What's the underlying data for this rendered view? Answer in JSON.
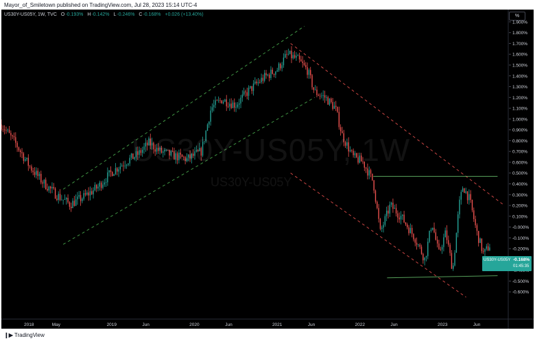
{
  "header": {
    "publisher_line": "Mayor_of_Smiletown published on TradingView.com, Jul 28, 2023 15:14 UTC-4"
  },
  "legend": {
    "symbol": "US30Y-US05Y, 1W, TVC",
    "o_label": "O",
    "o_value": "-0.193%",
    "h_label": "H",
    "h_value": "-0.142%",
    "l_label": "L",
    "l_value": "-0.246%",
    "c_label": "C",
    "c_value": "-0.168%",
    "change": "+0.026 (+13.40%)"
  },
  "watermark": {
    "main": "US30Y-US05Y, 1W",
    "sub": "US30Y-US05Y"
  },
  "price_axis": {
    "unit_button": "%"
  },
  "price_tag": {
    "symbol": "US30Y-US05Y",
    "price": "-0.168%",
    "timer": "01:45:35"
  },
  "footer": {
    "brand": "TradingView"
  },
  "colors": {
    "background": "#000000",
    "up_candle": "#26a69a",
    "down_candle": "#ef5350",
    "green_trendline": "#4caf50",
    "red_trendline": "#ef5350",
    "horizontal_line": "#66bb6a",
    "axis_text": "#d1d4dc"
  },
  "chart_data": {
    "type": "candlestick",
    "title": "",
    "xlabel": "",
    "ylabel": "",
    "ylim": [
      -0.7,
      1.95
    ],
    "y_unit": "%",
    "y_ticks": [
      "1.900%",
      "1.800%",
      "1.700%",
      "1.600%",
      "1.500%",
      "1.400%",
      "1.300%",
      "1.200%",
      "1.100%",
      "1.000%",
      "0.900%",
      "0.800%",
      "0.700%",
      "0.600%",
      "0.500%",
      "0.400%",
      "0.300%",
      "0.200%",
      "0.100%",
      "-0.000%",
      "-0.100%",
      "-0.200%",
      "-0.300%",
      "-0.400%",
      "-0.500%",
      "-0.600%"
    ],
    "y_tick_values": [
      1.9,
      1.8,
      1.7,
      1.6,
      1.5,
      1.4,
      1.3,
      1.2,
      1.1,
      1.0,
      0.9,
      0.8,
      0.7,
      0.6,
      0.5,
      0.4,
      0.3,
      0.2,
      0.1,
      0.0,
      -0.1,
      -0.2,
      -0.3,
      -0.4,
      -0.5,
      -0.6
    ],
    "xlim": [
      "2017-09-01",
      "2023-10-15"
    ],
    "x_ticks": [
      {
        "label": "2018",
        "date": "2018-01-01"
      },
      {
        "label": "May",
        "date": "2018-05-01"
      },
      {
        "label": "2019",
        "date": "2019-01-01"
      },
      {
        "label": "Jun",
        "date": "2019-06-01"
      },
      {
        "label": "2020",
        "date": "2020-01-01"
      },
      {
        "label": "Jun",
        "date": "2020-06-01"
      },
      {
        "label": "2021",
        "date": "2021-01-01"
      },
      {
        "label": "Jun",
        "date": "2021-06-01"
      },
      {
        "label": "2022",
        "date": "2022-01-01"
      },
      {
        "label": "Jun",
        "date": "2022-06-01"
      },
      {
        "label": "2023",
        "date": "2023-01-01"
      },
      {
        "label": "Jun",
        "date": "2023-06-01"
      }
    ],
    "anchors": [
      [
        "2017-09-01",
        0.95
      ],
      [
        "2017-11-01",
        0.78
      ],
      [
        "2018-01-01",
        0.57
      ],
      [
        "2018-03-01",
        0.42
      ],
      [
        "2018-05-01",
        0.3
      ],
      [
        "2018-07-01",
        0.21
      ],
      [
        "2018-09-01",
        0.28
      ],
      [
        "2018-11-01",
        0.37
      ],
      [
        "2019-01-01",
        0.51
      ],
      [
        "2019-03-01",
        0.6
      ],
      [
        "2019-05-01",
        0.68
      ],
      [
        "2019-06-15",
        0.78
      ],
      [
        "2019-08-01",
        0.7
      ],
      [
        "2019-10-01",
        0.66
      ],
      [
        "2019-12-01",
        0.63
      ],
      [
        "2020-02-01",
        0.7
      ],
      [
        "2020-03-15",
        1.1
      ],
      [
        "2020-05-01",
        1.18
      ],
      [
        "2020-07-01",
        1.13
      ],
      [
        "2020-09-01",
        1.27
      ],
      [
        "2020-11-01",
        1.38
      ],
      [
        "2021-01-01",
        1.46
      ],
      [
        "2021-02-15",
        1.6
      ],
      [
        "2021-04-01",
        1.55
      ],
      [
        "2021-05-15",
        1.45
      ],
      [
        "2021-06-15",
        1.25
      ],
      [
        "2021-08-01",
        1.2
      ],
      [
        "2021-09-15",
        1.1
      ],
      [
        "2021-10-15",
        0.85
      ],
      [
        "2021-12-01",
        0.65
      ],
      [
        "2022-01-15",
        0.6
      ],
      [
        "2022-03-01",
        0.42
      ],
      [
        "2022-04-01",
        -0.05
      ],
      [
        "2022-05-15",
        0.2
      ],
      [
        "2022-07-01",
        0.1
      ],
      [
        "2022-09-01",
        -0.1
      ],
      [
        "2022-10-15",
        -0.3
      ],
      [
        "2022-11-15",
        0.05
      ],
      [
        "2022-12-15",
        -0.25
      ],
      [
        "2023-01-15",
        -0.05
      ],
      [
        "2023-02-15",
        -0.4
      ],
      [
        "2023-03-15",
        0.2
      ],
      [
        "2023-04-01",
        0.38
      ],
      [
        "2023-05-01",
        0.25
      ],
      [
        "2023-06-01",
        -0.05
      ],
      [
        "2023-07-01",
        -0.25
      ],
      [
        "2023-07-28",
        -0.17
      ]
    ],
    "drawings": {
      "green_channel_upper": [
        [
          "2018-06-01",
          0.35
        ],
        [
          "2021-05-01",
          1.86
        ]
      ],
      "green_channel_lower": [
        [
          "2018-06-01",
          -0.16
        ],
        [
          "2021-06-15",
          1.2
        ]
      ],
      "red_channel_upper": [
        [
          "2021-03-01",
          1.7
        ],
        [
          "2023-10-01",
          0.2
        ]
      ],
      "red_channel_lower": [
        [
          "2021-03-01",
          0.5
        ],
        [
          "2023-04-15",
          -0.65
        ]
      ],
      "horizontal_resistance": [
        [
          "2022-03-01",
          0.47
        ],
        [
          "2023-09-01",
          0.47
        ]
      ],
      "horizontal_support": [
        [
          "2022-05-01",
          -0.47
        ],
        [
          "2023-09-01",
          -0.45
        ]
      ]
    }
  }
}
